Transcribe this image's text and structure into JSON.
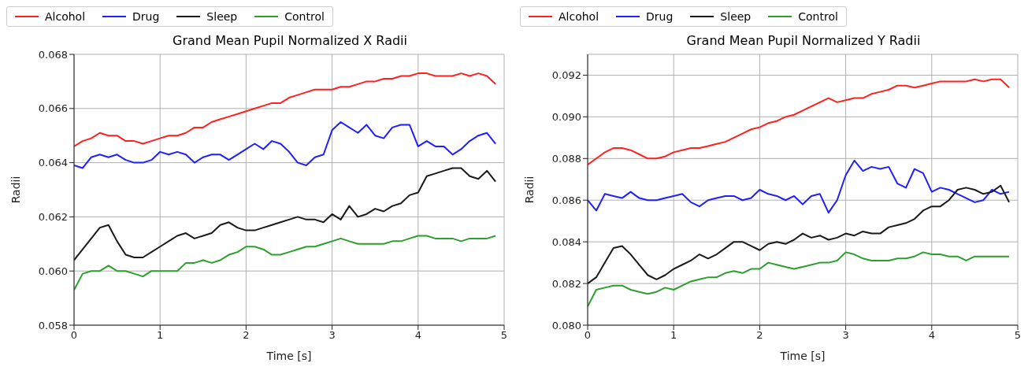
{
  "chart_data": [
    {
      "type": "line",
      "title": "Grand Mean Pupil Normalized X Radii",
      "xlabel": "Time [s]",
      "ylabel": "Radii",
      "legend": "top",
      "grid": true,
      "marker": "none",
      "line_style": "solid",
      "xlim": [
        0,
        5
      ],
      "xticks": [
        0,
        1,
        2,
        3,
        4,
        5
      ],
      "ylim": [
        0.058,
        0.068
      ],
      "yticks": [
        0.058,
        {
          "value": 0.06,
          "label": "0.060"
        },
        0.062,
        0.064,
        0.066,
        0.068
      ],
      "x": [
        0,
        0.1,
        0.2,
        0.3,
        0.4,
        0.5,
        0.6,
        0.7,
        0.8,
        0.9,
        1,
        1.1,
        1.2,
        1.3,
        1.4,
        1.5,
        1.6,
        1.7,
        1.8,
        1.9,
        2,
        2.1,
        2.2,
        2.3,
        2.4,
        2.5,
        2.6,
        2.7,
        2.8,
        2.9,
        3,
        3.1,
        3.2,
        3.3,
        3.4,
        3.5,
        3.6,
        3.7,
        3.8,
        3.9,
        4,
        4.1,
        4.2,
        4.3,
        4.4,
        4.5,
        4.6,
        4.7,
        4.8,
        4.9
      ],
      "series": [
        {
          "name": "Alcohol",
          "color": "#ff2020",
          "values": [
            0.0646,
            0.0648,
            0.0649,
            0.0651,
            0.065,
            0.065,
            0.0648,
            0.0648,
            0.0647,
            0.0648,
            0.0649,
            0.065,
            0.065,
            0.0651,
            0.0653,
            0.0653,
            0.0655,
            0.0656,
            0.0657,
            0.0658,
            0.0659,
            0.066,
            0.0661,
            0.0662,
            0.0662,
            0.0664,
            0.0665,
            0.0666,
            0.0667,
            0.0667,
            0.0667,
            0.0668,
            0.0668,
            0.0669,
            0.067,
            0.067,
            0.0671,
            0.0671,
            0.0672,
            0.0672,
            0.0673,
            0.0673,
            0.0672,
            0.0672,
            0.0672,
            0.0673,
            0.0672,
            0.0673,
            0.0672,
            0.0669
          ]
        },
        {
          "name": "Drug",
          "color": "#1f1fff",
          "values": [
            0.0639,
            0.0638,
            0.0642,
            0.0643,
            0.0642,
            0.0643,
            0.0641,
            0.064,
            0.064,
            0.0641,
            0.0644,
            0.0643,
            0.0644,
            0.0643,
            0.064,
            0.0642,
            0.0643,
            0.0643,
            0.0641,
            0.0643,
            0.0645,
            0.0647,
            0.0645,
            0.0648,
            0.0647,
            0.0644,
            0.064,
            0.0639,
            0.0642,
            0.0643,
            0.0652,
            0.0655,
            0.0653,
            0.0651,
            0.0654,
            0.065,
            0.0649,
            0.0653,
            0.0654,
            0.0654,
            0.0646,
            0.0648,
            0.0646,
            0.0646,
            0.0643,
            0.0645,
            0.0648,
            0.065,
            0.0651,
            0.0647
          ]
        },
        {
          "name": "Sleep",
          "color": "#1a1a1a",
          "values": [
            0.0604,
            0.0608,
            0.0612,
            0.0616,
            0.0617,
            0.0611,
            0.0606,
            0.0605,
            0.0605,
            0.0607,
            0.0609,
            0.0611,
            0.0613,
            0.0614,
            0.0612,
            0.0613,
            0.0614,
            0.0617,
            0.0618,
            0.0616,
            0.0615,
            0.0615,
            0.0616,
            0.0617,
            0.0618,
            0.0619,
            0.062,
            0.0619,
            0.0619,
            0.0618,
            0.0621,
            0.0619,
            0.0624,
            0.062,
            0.0621,
            0.0623,
            0.0622,
            0.0624,
            0.0625,
            0.0628,
            0.0629,
            0.0635,
            0.0636,
            0.0637,
            0.0638,
            0.0638,
            0.0635,
            0.0634,
            0.0637,
            0.0633
          ]
        },
        {
          "name": "Control",
          "color": "#2ca02c",
          "values": [
            0.0593,
            0.0599,
            0.06,
            0.06,
            0.0602,
            0.06,
            0.06,
            0.0599,
            0.0598,
            0.06,
            0.06,
            0.06,
            0.06,
            0.0603,
            0.0603,
            0.0604,
            0.0603,
            0.0604,
            0.0606,
            0.0607,
            0.0609,
            0.0609,
            0.0608,
            0.0606,
            0.0606,
            0.0607,
            0.0608,
            0.0609,
            0.0609,
            0.061,
            0.0611,
            0.0612,
            0.0611,
            0.061,
            0.061,
            0.061,
            0.061,
            0.0611,
            0.0611,
            0.0612,
            0.0613,
            0.0613,
            0.0612,
            0.0612,
            0.0612,
            0.0611,
            0.0612,
            0.0612,
            0.0612,
            0.0613
          ]
        }
      ]
    },
    {
      "type": "line",
      "title": "Grand Mean Pupil Normalized Y Radii",
      "xlabel": "Time [s]",
      "ylabel": "Radii",
      "legend": "top",
      "grid": true,
      "marker": "none",
      "line_style": "solid",
      "xlim": [
        0,
        5
      ],
      "xticks": [
        0,
        1,
        2,
        3,
        4,
        5
      ],
      "ylim": [
        0.08,
        0.093
      ],
      "yticks": [
        {
          "value": 0.08,
          "label": "0.080"
        },
        0.082,
        0.084,
        0.086,
        0.088,
        {
          "value": 0.09,
          "label": "0.090"
        },
        0.092
      ],
      "x": [
        0,
        0.1,
        0.2,
        0.3,
        0.4,
        0.5,
        0.6,
        0.7,
        0.8,
        0.9,
        1,
        1.1,
        1.2,
        1.3,
        1.4,
        1.5,
        1.6,
        1.7,
        1.8,
        1.9,
        2,
        2.1,
        2.2,
        2.3,
        2.4,
        2.5,
        2.6,
        2.7,
        2.8,
        2.9,
        3,
        3.1,
        3.2,
        3.3,
        3.4,
        3.5,
        3.6,
        3.7,
        3.8,
        3.9,
        4,
        4.1,
        4.2,
        4.3,
        4.4,
        4.5,
        4.6,
        4.7,
        4.8,
        4.9
      ],
      "series": [
        {
          "name": "Alcohol",
          "color": "#ff2020",
          "values": [
            0.0877,
            0.088,
            0.0883,
            0.0885,
            0.0885,
            0.0884,
            0.0882,
            0.088,
            0.088,
            0.0881,
            0.0883,
            0.0884,
            0.0885,
            0.0885,
            0.0886,
            0.0887,
            0.0888,
            0.089,
            0.0892,
            0.0894,
            0.0895,
            0.0897,
            0.0898,
            0.09,
            0.0901,
            0.0903,
            0.0905,
            0.0907,
            0.0909,
            0.0907,
            0.0908,
            0.0909,
            0.0909,
            0.0911,
            0.0912,
            0.0913,
            0.0915,
            0.0915,
            0.0914,
            0.0915,
            0.0916,
            0.0917,
            0.0917,
            0.0917,
            0.0917,
            0.0918,
            0.0917,
            0.0918,
            0.0918,
            0.0914
          ]
        },
        {
          "name": "Drug",
          "color": "#1f1fff",
          "values": [
            0.086,
            0.0855,
            0.0863,
            0.0862,
            0.0861,
            0.0864,
            0.0861,
            0.086,
            0.086,
            0.0861,
            0.0862,
            0.0863,
            0.0859,
            0.0857,
            0.086,
            0.0861,
            0.0862,
            0.0862,
            0.086,
            0.0861,
            0.0865,
            0.0863,
            0.0862,
            0.086,
            0.0862,
            0.0858,
            0.0862,
            0.0863,
            0.0854,
            0.086,
            0.0872,
            0.0879,
            0.0874,
            0.0876,
            0.0875,
            0.0876,
            0.0868,
            0.0866,
            0.0875,
            0.0873,
            0.0864,
            0.0866,
            0.0865,
            0.0863,
            0.0861,
            0.0859,
            0.086,
            0.0865,
            0.0863,
            0.0864
          ]
        },
        {
          "name": "Sleep",
          "color": "#1a1a1a",
          "values": [
            0.082,
            0.0823,
            0.083,
            0.0837,
            0.0838,
            0.0834,
            0.0829,
            0.0824,
            0.0822,
            0.0824,
            0.0827,
            0.0829,
            0.0831,
            0.0834,
            0.0832,
            0.0834,
            0.0837,
            0.084,
            0.084,
            0.0838,
            0.0836,
            0.0839,
            0.084,
            0.0839,
            0.0841,
            0.0844,
            0.0842,
            0.0843,
            0.0841,
            0.0842,
            0.0844,
            0.0843,
            0.0845,
            0.0844,
            0.0844,
            0.0847,
            0.0848,
            0.0849,
            0.0851,
            0.0855,
            0.0857,
            0.0857,
            0.086,
            0.0865,
            0.0866,
            0.0865,
            0.0863,
            0.0864,
            0.0867,
            0.0859
          ]
        },
        {
          "name": "Control",
          "color": "#2ca02c",
          "values": [
            0.0809,
            0.0817,
            0.0818,
            0.0819,
            0.0819,
            0.0817,
            0.0816,
            0.0815,
            0.0816,
            0.0818,
            0.0817,
            0.0819,
            0.0821,
            0.0822,
            0.0823,
            0.0823,
            0.0825,
            0.0826,
            0.0825,
            0.0827,
            0.0827,
            0.083,
            0.0829,
            0.0828,
            0.0827,
            0.0828,
            0.0829,
            0.083,
            0.083,
            0.0831,
            0.0835,
            0.0834,
            0.0832,
            0.0831,
            0.0831,
            0.0831,
            0.0832,
            0.0832,
            0.0833,
            0.0835,
            0.0834,
            0.0834,
            0.0833,
            0.0833,
            0.0831,
            0.0833,
            0.0833,
            0.0833,
            0.0833,
            0.0833
          ]
        }
      ]
    }
  ]
}
